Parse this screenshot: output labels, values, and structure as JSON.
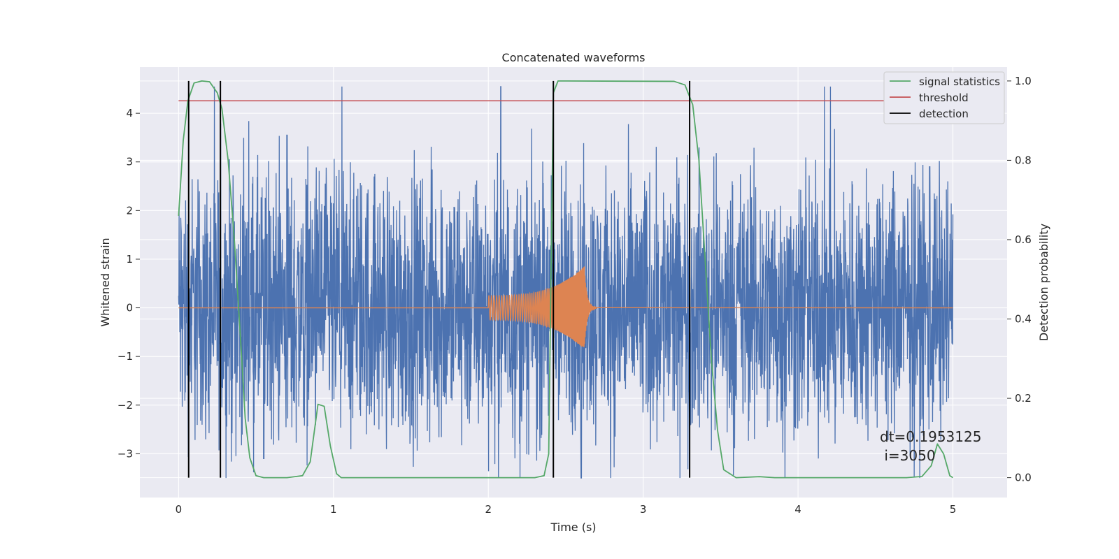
{
  "chart_data": {
    "type": "line",
    "title": "Concatenated waveforms",
    "xlabel": "Time (s)",
    "ylabel": "Whitened strain",
    "y2label": "Detection probability",
    "xlim": [
      -0.25,
      5.35
    ],
    "ylim": [
      -3.9,
      4.95
    ],
    "y2lim": [
      -0.05,
      1.035
    ],
    "grid": true,
    "xticks": [
      0,
      1,
      2,
      3,
      4,
      5
    ],
    "yticks": [
      -3,
      -2,
      -1,
      0,
      1,
      2,
      3,
      4
    ],
    "y2ticks": [
      0.0,
      0.2,
      0.4,
      0.6,
      0.8,
      1.0
    ],
    "legend_position": "top-right",
    "colors": {
      "noise": "#4c72b0",
      "injection": "#dd8452",
      "statistic": "#55a868",
      "threshold": "#c44e52",
      "detection": "#000000",
      "background": "#eaeaf2",
      "grid": "#ffffff"
    },
    "noise": {
      "x_range": [
        0,
        5
      ],
      "envelope_min": -3.5,
      "envelope_max": 4.55,
      "typical_amplitude": 2.0,
      "notable_spikes": [
        {
          "x": 0.7,
          "y": 3.55
        },
        {
          "x": 2.08,
          "y": 4.55
        },
        {
          "x": 2.6,
          "y": -3.5
        },
        {
          "x": 0.55,
          "y": -3.1
        },
        {
          "x": 4.85,
          "y": 2.9
        }
      ]
    },
    "injection": {
      "x_start": 2.0,
      "x_merger": 2.62,
      "x_end": 2.7,
      "amplitude_start": 0.25,
      "amplitude_peak": 0.85
    },
    "threshold": {
      "value": 0.95,
      "x_range": [
        0,
        5
      ]
    },
    "detections": [
      0.065,
      0.27,
      2.42,
      3.3
    ],
    "statistic": {
      "x": [
        0.0,
        0.03,
        0.06,
        0.1,
        0.15,
        0.2,
        0.25,
        0.28,
        0.32,
        0.36,
        0.4,
        0.43,
        0.46,
        0.5,
        0.55,
        0.7,
        0.8,
        0.85,
        0.9,
        0.94,
        0.98,
        1.02,
        1.05,
        1.1,
        2.3,
        2.36,
        2.39,
        2.42,
        2.45,
        2.5,
        3.2,
        3.27,
        3.32,
        3.36,
        3.4,
        3.44,
        3.48,
        3.52,
        3.6,
        3.75,
        3.85,
        4.7,
        4.8,
        4.86,
        4.9,
        4.94,
        4.98,
        5.0
      ],
      "y": [
        0.66,
        0.85,
        0.95,
        0.995,
        1.0,
        0.998,
        0.97,
        0.93,
        0.8,
        0.6,
        0.35,
        0.15,
        0.05,
        0.005,
        0.0,
        0.0,
        0.005,
        0.04,
        0.185,
        0.18,
        0.08,
        0.01,
        0.0,
        0.0,
        0.0,
        0.005,
        0.06,
        0.97,
        1.0,
        1.0,
        0.999,
        0.99,
        0.94,
        0.8,
        0.55,
        0.3,
        0.12,
        0.02,
        0.0,
        0.0025,
        0.0,
        0.0,
        0.003,
        0.03,
        0.085,
        0.06,
        0.005,
        0.0
      ]
    },
    "series": [
      {
        "name": "signal statistics"
      },
      {
        "name": "threshold"
      },
      {
        "name": "detection"
      }
    ],
    "annotation": {
      "line1": "dt=0.1953125",
      "line2": " i=3050"
    }
  }
}
